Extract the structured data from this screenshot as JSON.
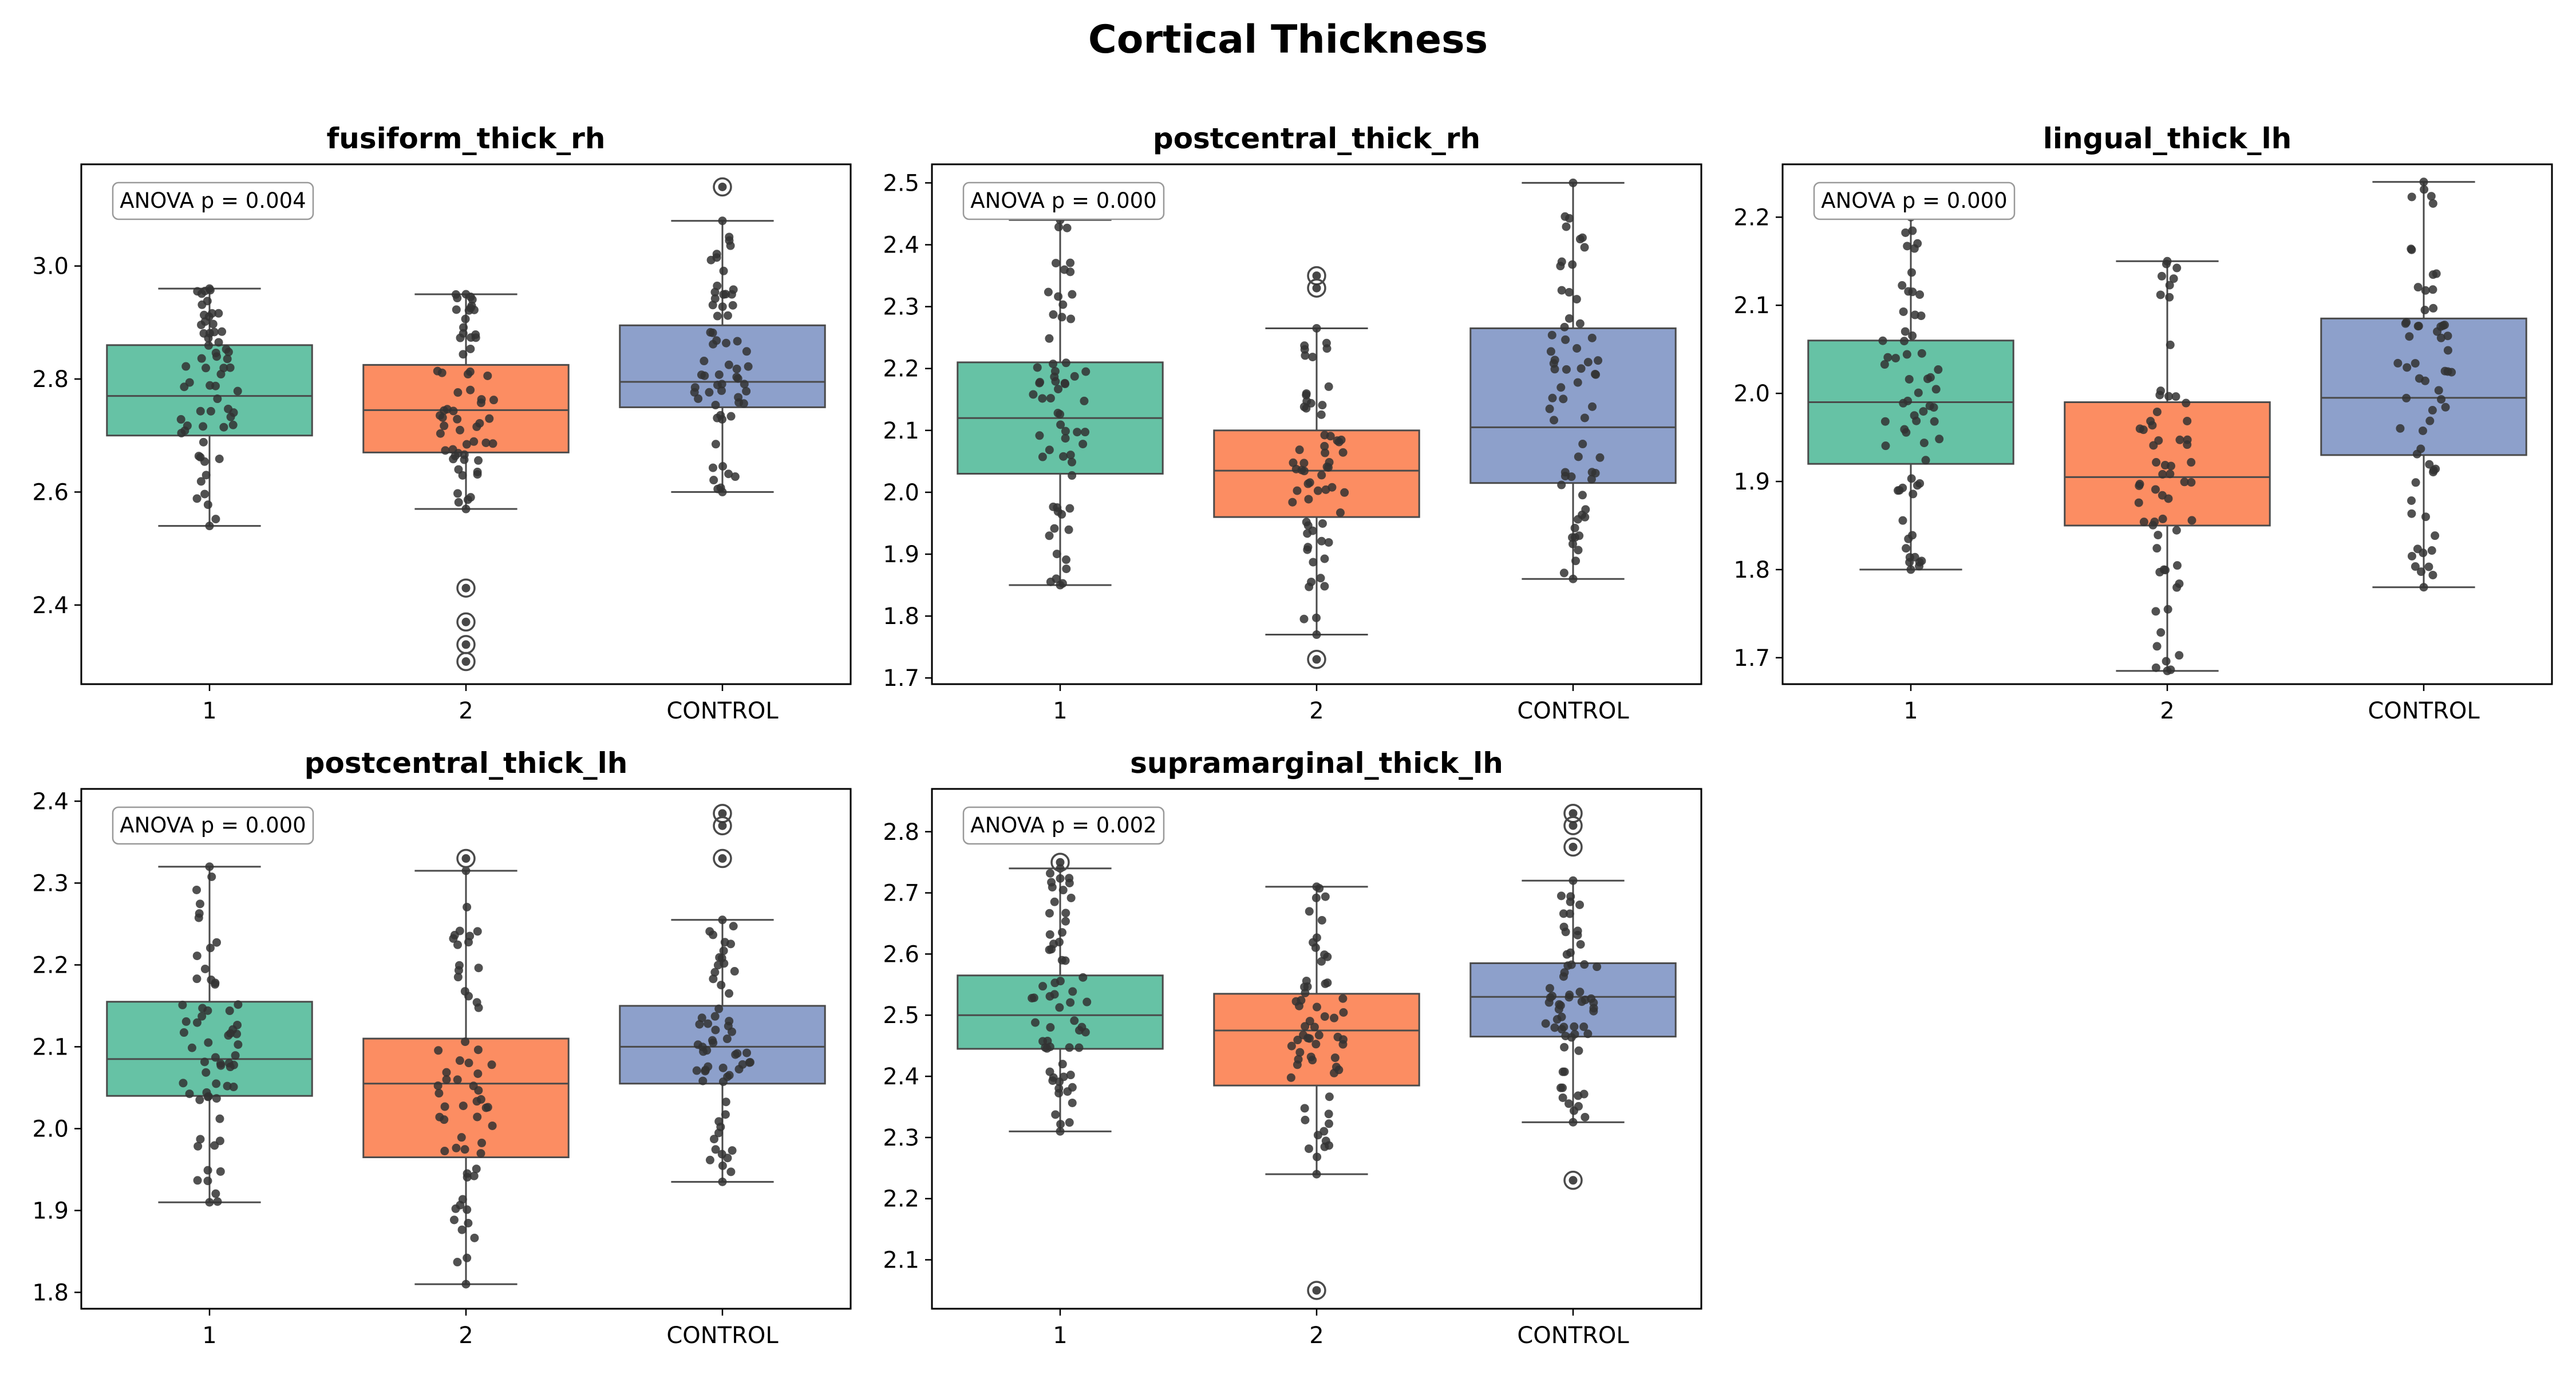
{
  "figure_title": "Cortical Thickness",
  "colors": {
    "group_1": "#66c2a5",
    "group_2": "#fc8d62",
    "group_control": "#8da0cb",
    "box_edge": "#4a4a4a",
    "points": "#333333"
  },
  "chart_data": [
    {
      "type": "box",
      "title": "fusiform_thick_rh",
      "annotation": "ANOVA p = 0.004",
      "categories": [
        "1",
        "2",
        "CONTROL"
      ],
      "ylim": [
        2.26,
        3.18
      ],
      "yticks": [
        2.4,
        2.6,
        2.8,
        3.0
      ],
      "ytick_labels": [
        "2.4",
        "2.6",
        "2.8",
        "3.0"
      ],
      "boxes": [
        {
          "whisker_low": 2.54,
          "q1": 2.7,
          "median": 2.77,
          "q3": 2.86,
          "whisker_high": 2.96,
          "outliers": []
        },
        {
          "whisker_low": 2.57,
          "q1": 2.67,
          "median": 2.745,
          "q3": 2.825,
          "whisker_high": 2.95,
          "outliers": [
            2.43,
            2.37,
            2.33,
            2.3
          ]
        },
        {
          "whisker_low": 2.6,
          "q1": 2.75,
          "median": 2.795,
          "q3": 2.895,
          "whisker_high": 3.08,
          "outliers": [
            3.14
          ]
        }
      ]
    },
    {
      "type": "box",
      "title": "postcentral_thick_rh",
      "annotation": "ANOVA p = 0.000",
      "categories": [
        "1",
        "2",
        "CONTROL"
      ],
      "ylim": [
        1.69,
        2.53
      ],
      "yticks": [
        1.7,
        1.8,
        1.9,
        2.0,
        2.1,
        2.2,
        2.3,
        2.4,
        2.5
      ],
      "ytick_labels": [
        "1.7",
        "1.8",
        "1.9",
        "2.0",
        "2.1",
        "2.2",
        "2.3",
        "2.4",
        "2.5"
      ],
      "boxes": [
        {
          "whisker_low": 1.85,
          "q1": 2.03,
          "median": 2.12,
          "q3": 2.21,
          "whisker_high": 2.44,
          "outliers": []
        },
        {
          "whisker_low": 1.77,
          "q1": 1.96,
          "median": 2.035,
          "q3": 2.1,
          "whisker_high": 2.265,
          "outliers": [
            2.35,
            2.33,
            1.73
          ]
        },
        {
          "whisker_low": 1.86,
          "q1": 2.015,
          "median": 2.105,
          "q3": 2.265,
          "whisker_high": 2.5,
          "outliers": []
        }
      ]
    },
    {
      "type": "box",
      "title": "lingual_thick_lh",
      "annotation": "ANOVA p = 0.000",
      "categories": [
        "1",
        "2",
        "CONTROL"
      ],
      "ylim": [
        1.67,
        2.26
      ],
      "yticks": [
        1.7,
        1.8,
        1.9,
        2.0,
        2.1,
        2.2
      ],
      "ytick_labels": [
        "1.7",
        "1.8",
        "1.9",
        "2.0",
        "2.1",
        "2.2"
      ],
      "boxes": [
        {
          "whisker_low": 1.8,
          "q1": 1.92,
          "median": 1.99,
          "q3": 2.06,
          "whisker_high": 2.2,
          "outliers": []
        },
        {
          "whisker_low": 1.685,
          "q1": 1.85,
          "median": 1.905,
          "q3": 1.99,
          "whisker_high": 2.15,
          "outliers": []
        },
        {
          "whisker_low": 1.78,
          "q1": 1.93,
          "median": 1.995,
          "q3": 2.085,
          "whisker_high": 2.24,
          "outliers": []
        }
      ]
    },
    {
      "type": "box",
      "title": "postcentral_thick_lh",
      "annotation": "ANOVA p = 0.000",
      "categories": [
        "1",
        "2",
        "CONTROL"
      ],
      "ylim": [
        1.78,
        2.415
      ],
      "yticks": [
        1.8,
        1.9,
        2.0,
        2.1,
        2.2,
        2.3,
        2.4
      ],
      "ytick_labels": [
        "1.8",
        "1.9",
        "2.0",
        "2.1",
        "2.2",
        "2.3",
        "2.4"
      ],
      "boxes": [
        {
          "whisker_low": 1.91,
          "q1": 2.04,
          "median": 2.085,
          "q3": 2.155,
          "whisker_high": 2.32,
          "outliers": []
        },
        {
          "whisker_low": 1.81,
          "q1": 1.965,
          "median": 2.055,
          "q3": 2.11,
          "whisker_high": 2.315,
          "outliers": [
            2.33
          ]
        },
        {
          "whisker_low": 1.935,
          "q1": 2.055,
          "median": 2.1,
          "q3": 2.15,
          "whisker_high": 2.255,
          "outliers": [
            2.385,
            2.37,
            2.33
          ]
        }
      ]
    },
    {
      "type": "box",
      "title": "supramarginal_thick_lh",
      "annotation": "ANOVA p = 0.002",
      "categories": [
        "1",
        "2",
        "CONTROL"
      ],
      "ylim": [
        2.02,
        2.87
      ],
      "yticks": [
        2.1,
        2.2,
        2.3,
        2.4,
        2.5,
        2.6,
        2.7,
        2.8
      ],
      "ytick_labels": [
        "2.1",
        "2.2",
        "2.3",
        "2.4",
        "2.5",
        "2.6",
        "2.7",
        "2.8"
      ],
      "boxes": [
        {
          "whisker_low": 2.31,
          "q1": 2.445,
          "median": 2.5,
          "q3": 2.565,
          "whisker_high": 2.74,
          "outliers": [
            2.75
          ]
        },
        {
          "whisker_low": 2.24,
          "q1": 2.385,
          "median": 2.475,
          "q3": 2.535,
          "whisker_high": 2.71,
          "outliers": [
            2.05
          ]
        },
        {
          "whisker_low": 2.325,
          "q1": 2.465,
          "median": 2.53,
          "q3": 2.585,
          "whisker_high": 2.72,
          "outliers": [
            2.83,
            2.81,
            2.775,
            2.23
          ]
        }
      ]
    }
  ]
}
